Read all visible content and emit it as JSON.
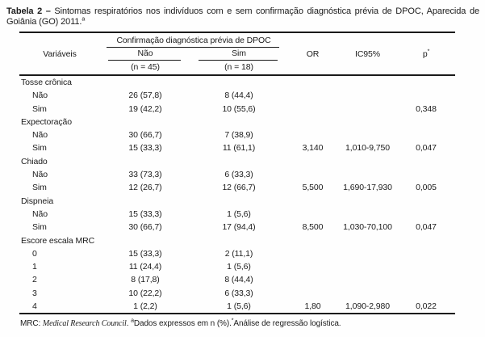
{
  "title": {
    "label": "Tabela 2 –",
    "text": " Sintomas respiratórios nos indivíduos com e sem confirmação diagnóstica prévia de DPOC, Aparecida de Goiânia (GO) 2011.",
    "superscript": "a"
  },
  "header": {
    "variables": "Variáveis",
    "group": "Confirmação diagnóstica prévia de DPOC",
    "col_no": "Não",
    "col_yes": "Sim",
    "n_no": "(n = 45)",
    "n_yes": "(n = 18)",
    "or": "OR",
    "ci": "IC95%",
    "p": "p",
    "p_superscript": "*"
  },
  "rows": [
    {
      "label": "Tosse crônica",
      "indent": false,
      "no": "",
      "yes": "",
      "or": "",
      "ci": "",
      "p": ""
    },
    {
      "label": "Não",
      "indent": true,
      "no": "26 (57,8)",
      "yes": "8 (44,4)",
      "or": "",
      "ci": "",
      "p": ""
    },
    {
      "label": "Sim",
      "indent": true,
      "no": "19 (42,2)",
      "yes": "10 (55,6)",
      "or": "",
      "ci": "",
      "p": "0,348"
    },
    {
      "label": "Expectoração",
      "indent": false,
      "no": "",
      "yes": "",
      "or": "",
      "ci": "",
      "p": ""
    },
    {
      "label": "Não",
      "indent": true,
      "no": "30 (66,7)",
      "yes": "7 (38,9)",
      "or": "",
      "ci": "",
      "p": ""
    },
    {
      "label": "Sim",
      "indent": true,
      "no": "15 (33,3)",
      "yes": "11 (61,1)",
      "or": "3,140",
      "ci": "1,010-9,750",
      "p": "0,047"
    },
    {
      "label": "Chiado",
      "indent": false,
      "no": "",
      "yes": "",
      "or": "",
      "ci": "",
      "p": ""
    },
    {
      "label": "Não",
      "indent": true,
      "no": "33 (73,3)",
      "yes": "6 (33,3)",
      "or": "",
      "ci": "",
      "p": ""
    },
    {
      "label": "Sim",
      "indent": true,
      "no": "12 (26,7)",
      "yes": "12 (66,7)",
      "or": "5,500",
      "ci": "1,690-17,930",
      "p": "0,005"
    },
    {
      "label": "Dispneia",
      "indent": false,
      "no": "",
      "yes": "",
      "or": "",
      "ci": "",
      "p": ""
    },
    {
      "label": "Não",
      "indent": true,
      "no": "15 (33,3)",
      "yes": "1 (5,6)",
      "or": "",
      "ci": "",
      "p": ""
    },
    {
      "label": "Sim",
      "indent": true,
      "no": "30 (66,7)",
      "yes": "17 (94,4)",
      "or": "8,500",
      "ci": "1,030-70,100",
      "p": "0,047"
    },
    {
      "label": "Escore escala MRC",
      "indent": false,
      "no": "",
      "yes": "",
      "or": "",
      "ci": "",
      "p": ""
    },
    {
      "label": "0",
      "indent": true,
      "no": "15 (33,3)",
      "yes": "2 (11,1)",
      "or": "",
      "ci": "",
      "p": ""
    },
    {
      "label": "1",
      "indent": true,
      "no": "11 (24,4)",
      "yes": "1 (5,6)",
      "or": "",
      "ci": "",
      "p": ""
    },
    {
      "label": "2",
      "indent": true,
      "no": "8 (17,8)",
      "yes": "8 (44,4)",
      "or": "",
      "ci": "",
      "p": ""
    },
    {
      "label": "3",
      "indent": true,
      "no": "10 (22,2)",
      "yes": "6 (33,3)",
      "or": "",
      "ci": "",
      "p": ""
    },
    {
      "label": "4",
      "indent": true,
      "no": "1 (2,2)",
      "yes": "1 (5,6)",
      "or": "1,80",
      "ci": "1,090-2,980",
      "p": "0,022"
    }
  ],
  "footnote": {
    "abbr": "MRC: ",
    "expansion": "Medical Research Council",
    "period": ". ",
    "marker_a": "a",
    "note_a": "Dados expressos em n (%).",
    "marker_p": "*",
    "note_p": "Análise de regressão logística."
  },
  "colors": {
    "text": "#1b1b1b",
    "rule": "#1a1a1a",
    "background": "#fefefe"
  }
}
